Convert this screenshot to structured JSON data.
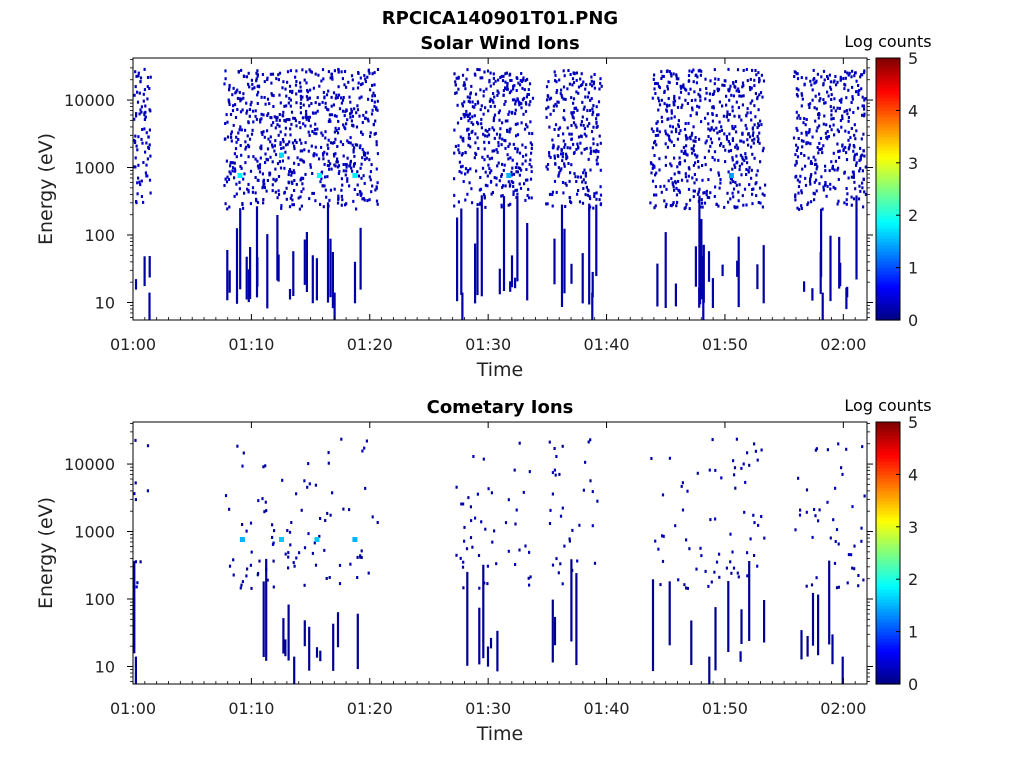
{
  "figure": {
    "title": "RPCICA140901T01.PNG"
  },
  "chart_data": [
    {
      "type": "heatmap",
      "title": "Solar Wind Ions",
      "xlabel": "Time",
      "ylabel": "Energy (eV)",
      "x_ticks": [
        "01:00",
        "01:10",
        "01:20",
        "01:30",
        "01:40",
        "01:50",
        "02:00"
      ],
      "x_range_minutes": [
        0,
        62
      ],
      "y_ticks": [
        "10",
        "100",
        "1000",
        "10000"
      ],
      "y_scale": "log",
      "y_range": [
        5.5,
        42000
      ],
      "colorbar": {
        "label": "Log counts",
        "range": [
          0,
          5
        ],
        "ticks": [
          "0",
          "1",
          "2",
          "3",
          "4",
          "5"
        ],
        "colormap": "jet"
      },
      "active_intervals_minutes": [
        [
          0.0,
          1.4
        ],
        [
          7.6,
          20.6
        ],
        [
          27.0,
          33.7
        ],
        [
          34.8,
          39.5
        ],
        [
          43.6,
          53.3
        ],
        [
          55.7,
          62.0
        ]
      ],
      "peaks": [
        {
          "time_minutes": 9.0,
          "energy_eV": 750,
          "log_counts": 1.8
        },
        {
          "time_minutes": 12.5,
          "energy_eV": 1500,
          "log_counts": 1.7
        },
        {
          "time_minutes": 15.7,
          "energy_eV": 750,
          "log_counts": 1.9
        },
        {
          "time_minutes": 18.7,
          "energy_eV": 750,
          "log_counts": 1.8
        },
        {
          "time_minutes": 31.7,
          "energy_eV": 750,
          "log_counts": 1.5
        },
        {
          "time_minutes": 50.5,
          "energy_eV": 750,
          "log_counts": 1.4
        }
      ],
      "background_log_counts": 0.2,
      "grid": false
    },
    {
      "type": "heatmap",
      "title": "Cometary Ions",
      "xlabel": "Time",
      "ylabel": "Energy (eV)",
      "x_ticks": [
        "01:00",
        "01:10",
        "01:20",
        "01:30",
        "01:40",
        "01:50",
        "02:00"
      ],
      "x_range_minutes": [
        0,
        62
      ],
      "y_ticks": [
        "10",
        "100",
        "1000",
        "10000"
      ],
      "y_scale": "log",
      "y_range": [
        5.5,
        42000
      ],
      "colorbar": {
        "label": "Log counts",
        "range": [
          0,
          5
        ],
        "ticks": [
          "0",
          "1",
          "2",
          "3",
          "4",
          "5"
        ],
        "colormap": "jet"
      },
      "active_intervals_minutes": [
        [
          0.0,
          1.4
        ],
        [
          7.6,
          20.6
        ],
        [
          27.0,
          33.7
        ],
        [
          34.8,
          39.5
        ],
        [
          43.6,
          53.3
        ],
        [
          55.7,
          62.0
        ]
      ],
      "peaks": [
        {
          "time_minutes": 9.2,
          "energy_eV": 750,
          "log_counts": 1.5
        },
        {
          "time_minutes": 12.5,
          "energy_eV": 750,
          "log_counts": 1.6
        },
        {
          "time_minutes": 15.5,
          "energy_eV": 750,
          "log_counts": 1.6
        },
        {
          "time_minutes": 18.7,
          "energy_eV": 750,
          "log_counts": 1.5
        }
      ],
      "background_log_counts": 0.1,
      "grid": false
    }
  ]
}
